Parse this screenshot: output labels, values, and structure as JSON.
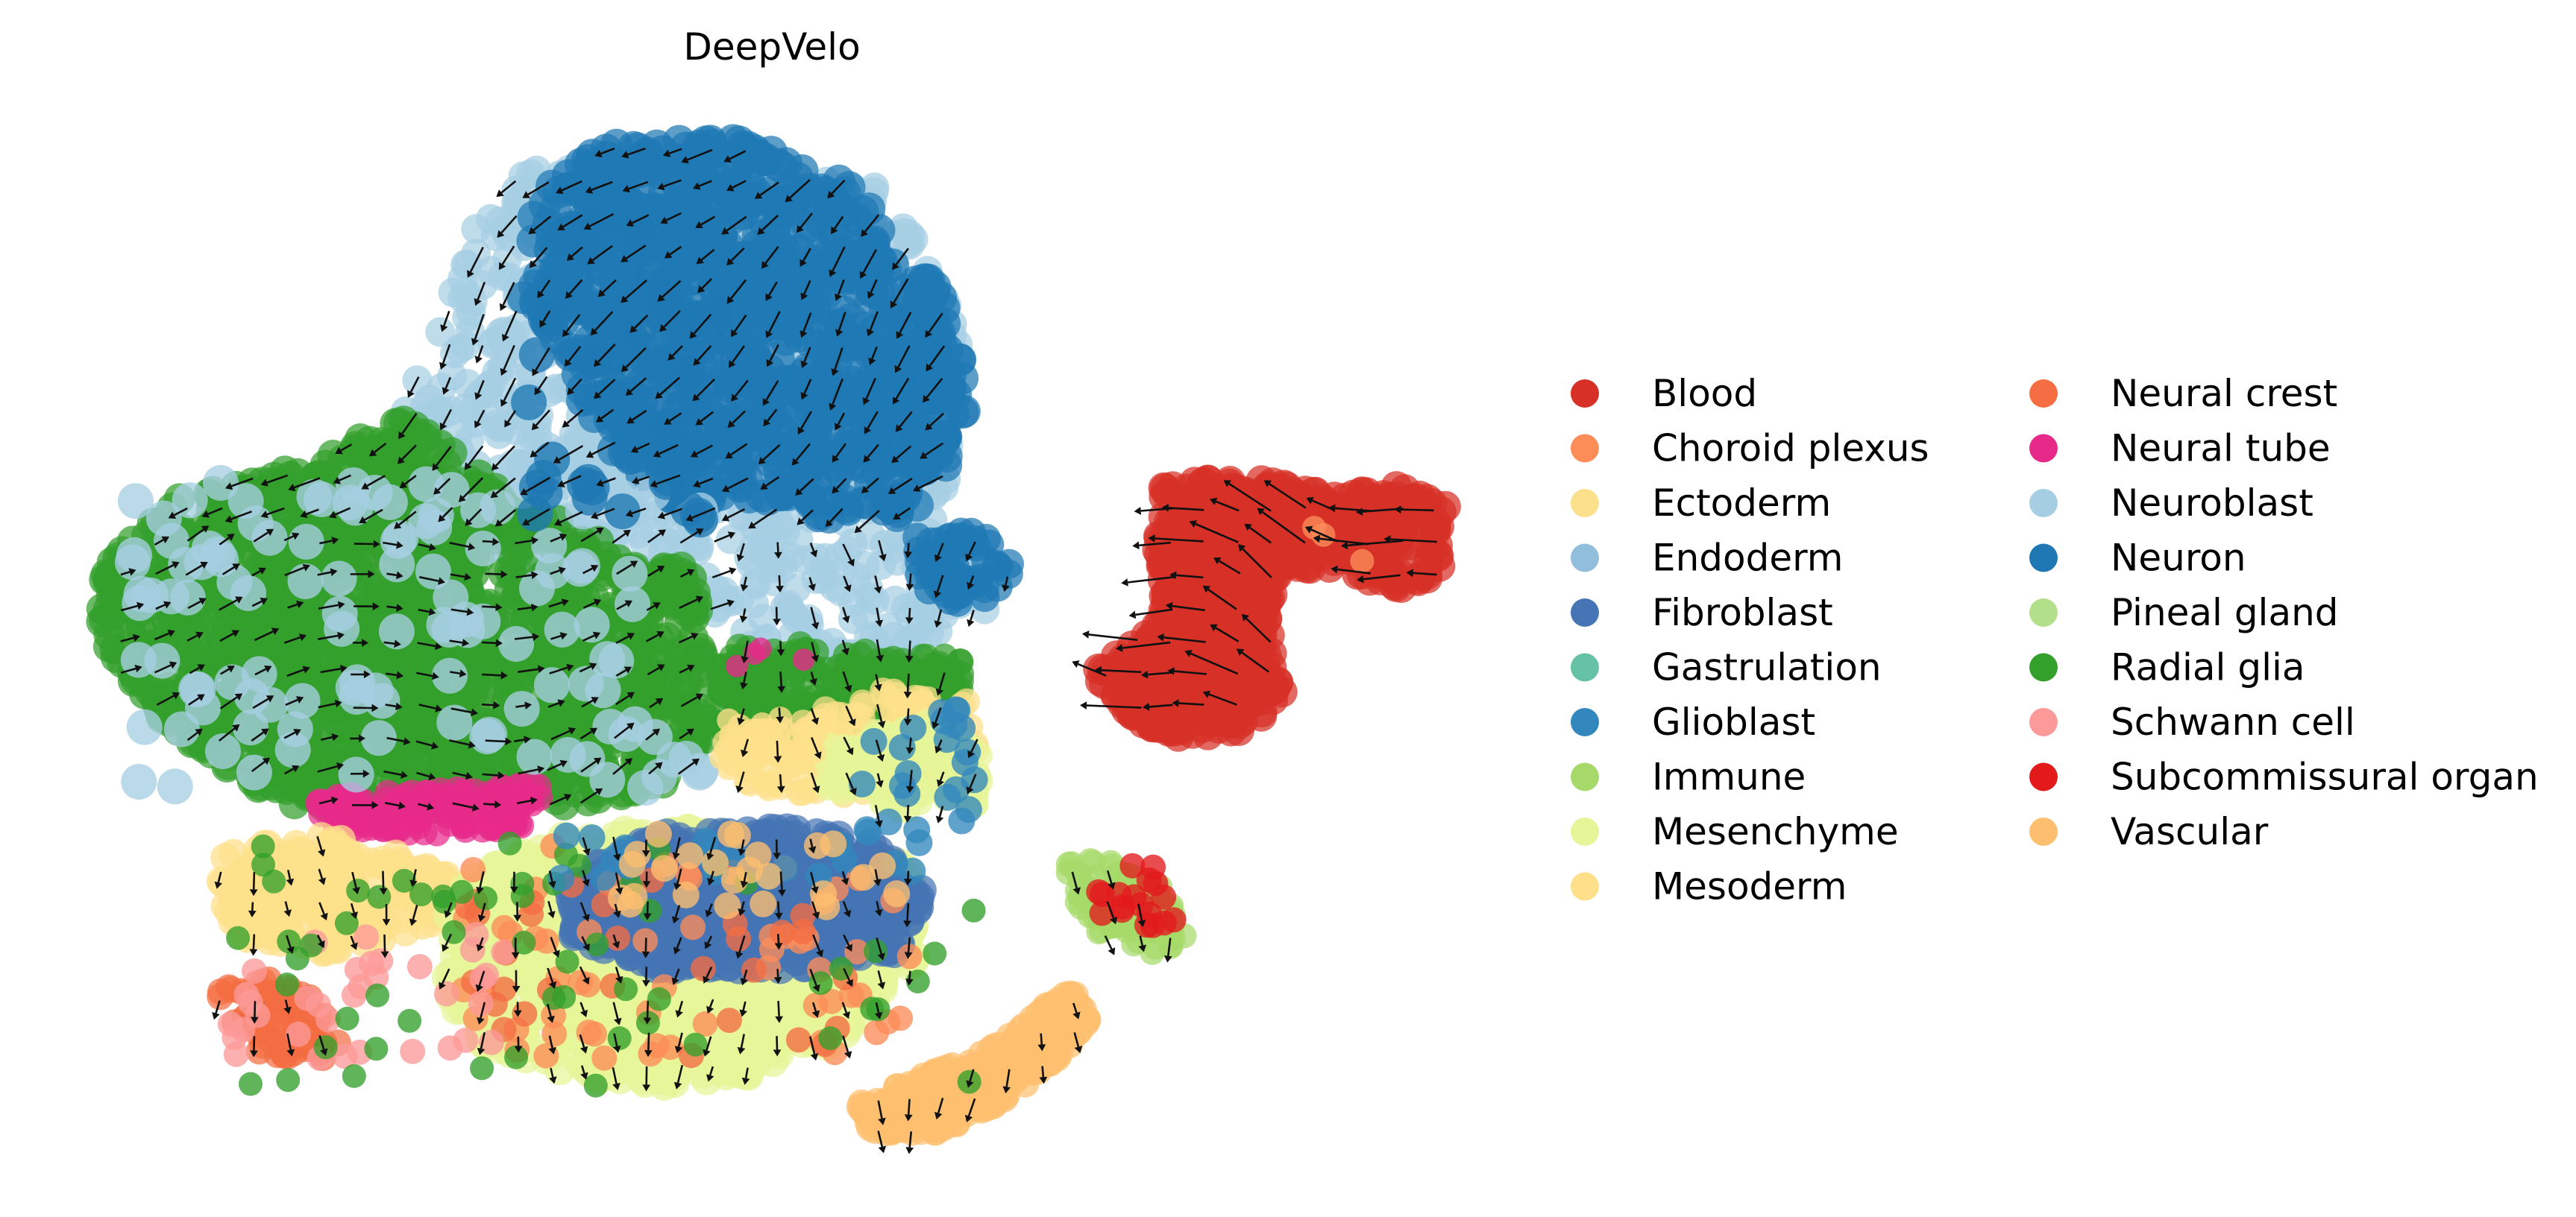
{
  "chart_data": {
    "type": "scatter",
    "title": "DeepVelo",
    "xlabel": "",
    "ylabel": "",
    "axes_visible": false,
    "grid": false,
    "legend_position": "right",
    "legend_columns": 2,
    "overlay": "velocity-arrows",
    "series": [
      {
        "name": "Blood",
        "color": "#d73027"
      },
      {
        "name": "Choroid plexus",
        "color": "#fc8d59"
      },
      {
        "name": "Ectoderm",
        "color": "#fde08b"
      },
      {
        "name": "Endoderm",
        "color": "#91bfdb"
      },
      {
        "name": "Fibroblast",
        "color": "#4575b4"
      },
      {
        "name": "Gastrulation",
        "color": "#66c2a5"
      },
      {
        "name": "Glioblast",
        "color": "#3288bd"
      },
      {
        "name": "Immune",
        "color": "#a6d96a"
      },
      {
        "name": "Mesenchyme",
        "color": "#e6f598"
      },
      {
        "name": "Mesoderm",
        "color": "#fee08b"
      },
      {
        "name": "Neural crest",
        "color": "#f46d43"
      },
      {
        "name": "Neural tube",
        "color": "#e7298a"
      },
      {
        "name": "Neuroblast",
        "color": "#a6cee3"
      },
      {
        "name": "Neuron",
        "color": "#1f78b4"
      },
      {
        "name": "Pineal gland",
        "color": "#b2df8a"
      },
      {
        "name": "Radial glia",
        "color": "#33a02c"
      },
      {
        "name": "Schwann cell",
        "color": "#fb9a99"
      },
      {
        "name": "Subcommissural organ",
        "color": "#e31a1c"
      },
      {
        "name": "Vascular",
        "color": "#fdbf6f"
      }
    ]
  }
}
